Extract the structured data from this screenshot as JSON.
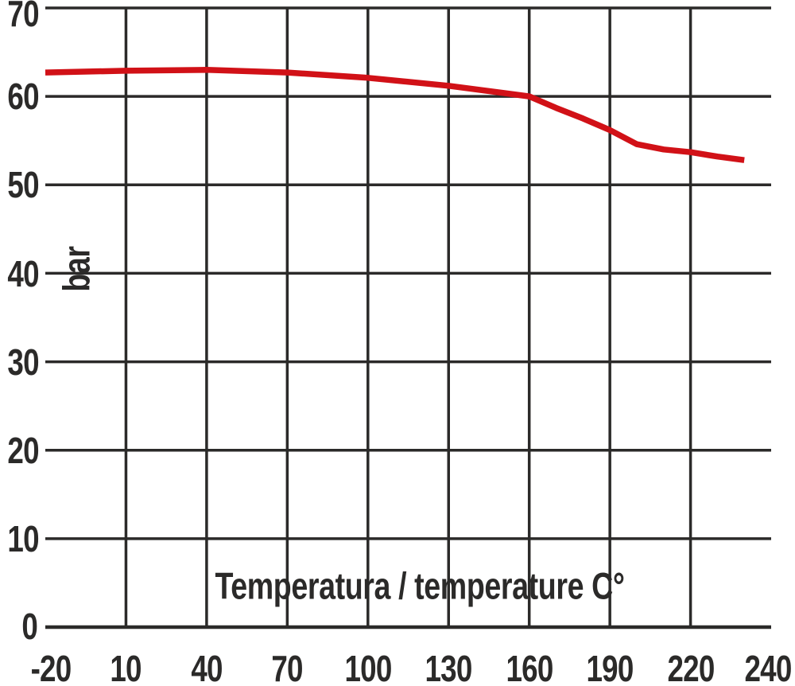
{
  "chart_data": {
    "type": "line",
    "title": "",
    "xlabel": "Temperatura / temperature C°",
    "ylabel": "bar",
    "x_tick_labels": [
      "-20",
      "10",
      "40",
      "70",
      "100",
      "130",
      "160",
      "190",
      "220",
      "240"
    ],
    "y_tick_labels": [
      "70",
      "60",
      "50",
      "40",
      "30",
      "20",
      "10",
      "0"
    ],
    "xlim": [
      -20,
      250
    ],
    "ylim": [
      0,
      70
    ],
    "grid": true,
    "legend": "none",
    "line_color": "#d11117",
    "grid_color": "#2b2a29",
    "text_color": "#2b2a29",
    "background_color": "#ffffff",
    "layout_note": "vertical gridlines every 30 C from 10 to 220; last x label 240 sits at the grid right edge; curve ends slightly before right edge",
    "series": [
      {
        "name": "series-1",
        "x": [
          -20,
          10,
          40,
          70,
          100,
          130,
          160,
          170,
          180,
          190,
          200,
          210,
          220,
          230,
          240
        ],
        "y": [
          62.7,
          62.9,
          63.0,
          62.7,
          62.1,
          61.2,
          60.0,
          58.7,
          57.5,
          56.2,
          54.6,
          54.0,
          53.7,
          53.2,
          52.8
        ]
      }
    ]
  }
}
